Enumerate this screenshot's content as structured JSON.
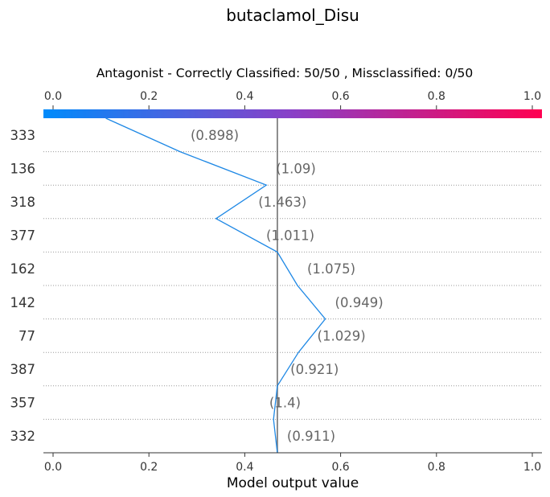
{
  "chart_data": {
    "type": "line",
    "title": "butaclamol_Disu",
    "subtitle": "Antagonist - Correctly Classified: 50/50 , Missclassified: 0/50",
    "xlabel": "Model output value",
    "xlim": [
      -0.02,
      1.02
    ],
    "xticks": [
      "0.0",
      "0.2",
      "0.4",
      "0.6",
      "0.8",
      "1.0"
    ],
    "xtick_values": [
      0.0,
      0.2,
      0.4,
      0.6,
      0.8,
      1.0
    ],
    "reference_value": 0.468,
    "grid": true,
    "colorbar": {
      "start_color": "#008bfb",
      "mid_color": "#8a3fc7",
      "end_color": "#ff0051"
    },
    "line_color": "#1e88e5",
    "reference_line_color": "#808080",
    "annotation_color": "#666666",
    "features": [
      {
        "label": "333",
        "annotation": "(0.898)",
        "start": 0.11,
        "end": 0.265
      },
      {
        "label": "136",
        "annotation": "(1.09)",
        "start": 0.265,
        "end": 0.445
      },
      {
        "label": "318",
        "annotation": "(1.463)",
        "start": 0.445,
        "end": 0.34
      },
      {
        "label": "377",
        "annotation": "(1.011)",
        "start": 0.34,
        "end": 0.468
      },
      {
        "label": "162",
        "annotation": "(1.075)",
        "start": 0.468,
        "end": 0.51
      },
      {
        "label": "142",
        "annotation": "(0.949)",
        "start": 0.51,
        "end": 0.568
      },
      {
        "label": "77",
        "annotation": "(1.029)",
        "start": 0.568,
        "end": 0.512
      },
      {
        "label": "387",
        "annotation": "(0.921)",
        "start": 0.512,
        "end": 0.468
      },
      {
        "label": "357",
        "annotation": "(1.4)",
        "start": 0.468,
        "end": 0.46
      },
      {
        "label": "332",
        "annotation": "(0.911)",
        "start": 0.46,
        "end": 0.468
      }
    ]
  }
}
